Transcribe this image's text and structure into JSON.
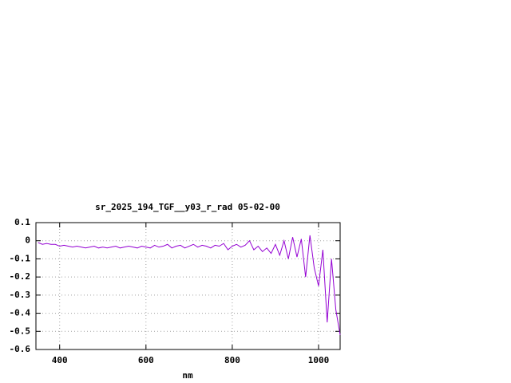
{
  "chart_data": {
    "type": "line",
    "title": "sr_2025_194_TGF__y03_r_rad 05-02-00",
    "x_label": "nm",
    "x": [
      350,
      360,
      370,
      380,
      390,
      400,
      410,
      420,
      430,
      440,
      450,
      460,
      470,
      480,
      490,
      500,
      510,
      520,
      530,
      540,
      550,
      560,
      570,
      580,
      590,
      600,
      610,
      620,
      630,
      640,
      650,
      660,
      670,
      680,
      690,
      700,
      710,
      720,
      730,
      740,
      750,
      760,
      770,
      780,
      790,
      800,
      810,
      820,
      830,
      840,
      850,
      860,
      870,
      880,
      890,
      900,
      910,
      920,
      930,
      940,
      950,
      960,
      970,
      980,
      990,
      1000,
      1010,
      1020,
      1030,
      1040,
      1050
    ],
    "values": [
      -0.01,
      -0.02,
      -0.015,
      -0.02,
      -0.02,
      -0.03,
      -0.025,
      -0.03,
      -0.035,
      -0.03,
      -0.035,
      -0.04,
      -0.035,
      -0.03,
      -0.04,
      -0.035,
      -0.04,
      -0.035,
      -0.03,
      -0.04,
      -0.035,
      -0.03,
      -0.035,
      -0.04,
      -0.03,
      -0.035,
      -0.04,
      -0.025,
      -0.035,
      -0.03,
      -0.02,
      -0.04,
      -0.03,
      -0.025,
      -0.04,
      -0.03,
      -0.02,
      -0.035,
      -0.025,
      -0.03,
      -0.04,
      -0.025,
      -0.03,
      -0.015,
      -0.05,
      -0.03,
      -0.02,
      -0.035,
      -0.025,
      0.0,
      -0.05,
      -0.03,
      -0.06,
      -0.04,
      -0.07,
      -0.02,
      -0.08,
      0.0,
      -0.1,
      0.02,
      -0.09,
      0.01,
      -0.2,
      0.03,
      -0.15,
      -0.25,
      -0.05,
      -0.45,
      -0.1,
      -0.38,
      -0.52
    ],
    "color": "#9400d3",
    "xlim": [
      345,
      1050
    ],
    "xticks": [
      400,
      600,
      800,
      1000
    ],
    "ylim": [
      -0.6,
      0.1
    ],
    "yticks": [
      -0.6,
      -0.5,
      -0.4,
      -0.3,
      -0.2,
      -0.1,
      0,
      0.1
    ],
    "grid": true
  }
}
